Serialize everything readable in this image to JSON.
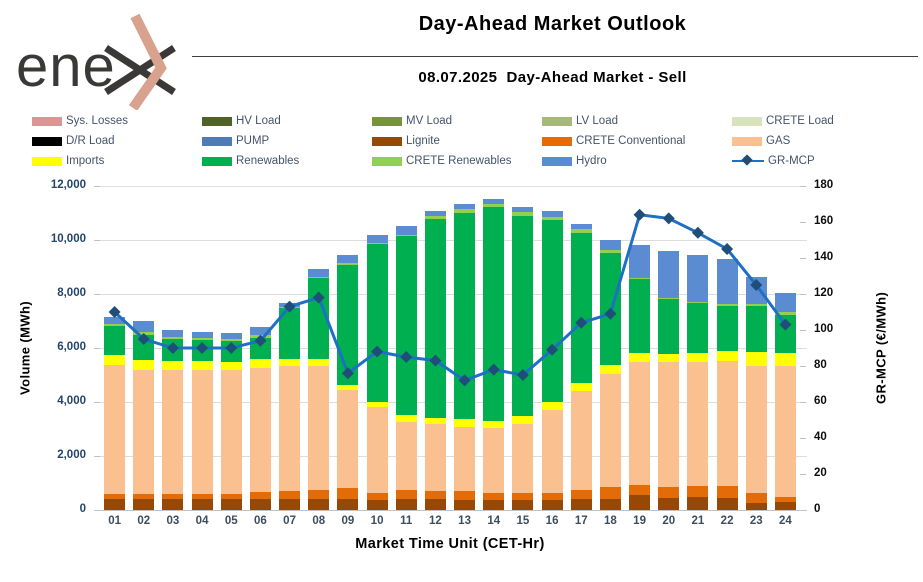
{
  "header": {
    "logo_text": "ene",
    "logo_mark": "x-chevron",
    "logo_colors": {
      "text": "#3B3838",
      "chevron": "#D8A28F"
    },
    "title": "Day-Ahead Market Outlook",
    "subtitle": "08.07.2025  Day-Ahead Market - Sell"
  },
  "legend": {
    "items": [
      {
        "label": "Sys. Losses",
        "color": "#D99694",
        "type": "swatch"
      },
      {
        "label": "HV Load",
        "color": "#4F6228",
        "type": "swatch"
      },
      {
        "label": "MV Load",
        "color": "#77933C",
        "type": "swatch"
      },
      {
        "label": "LV Load",
        "color": "#A6B97C",
        "type": "swatch"
      },
      {
        "label": "CRETE Load",
        "color": "#D6E3BC",
        "type": "swatch"
      },
      {
        "label": "D/R Load",
        "color": "#000000",
        "type": "swatch"
      },
      {
        "label": "PUMP",
        "color": "#4E7AB5",
        "type": "swatch"
      },
      {
        "label": "Lignite",
        "color": "#964806",
        "type": "swatch"
      },
      {
        "label": "CRETE Conventional",
        "color": "#E36C09",
        "type": "swatch"
      },
      {
        "label": "GAS",
        "color": "#FAC090",
        "type": "swatch"
      },
      {
        "label": "Imports",
        "color": "#FFFF00",
        "type": "swatch"
      },
      {
        "label": "Renewables",
        "color": "#00B050",
        "type": "swatch"
      },
      {
        "label": "CRETE Renewables",
        "color": "#92D050",
        "type": "swatch"
      },
      {
        "label": "Hydro",
        "color": "#5B8BD0",
        "type": "swatch"
      },
      {
        "label": "GR-MCP",
        "color": "#1F6FC5",
        "type": "line"
      }
    ]
  },
  "chart_data": {
    "type": "stacked-bar+line",
    "title": "08.07.2025 Day-Ahead Market - Sell",
    "xlabel": "Market Time Unit (CET-Hr)",
    "ylabel_left": "Volume (MWh)",
    "ylabel_right": "GR-MCP (€/MWh)",
    "ylim_left": [
      0,
      12000
    ],
    "ylim_right": [
      0,
      180
    ],
    "left_ticks": [
      "0",
      "2,000",
      "4,000",
      "6,000",
      "8,000",
      "10,000",
      "12,000"
    ],
    "right_ticks": [
      "0",
      "20",
      "40",
      "60",
      "80",
      "100",
      "120",
      "140",
      "160",
      "180"
    ],
    "grid": "horizontal",
    "legend_position": "top",
    "categories": [
      "01",
      "02",
      "03",
      "04",
      "05",
      "06",
      "07",
      "08",
      "09",
      "10",
      "11",
      "12",
      "13",
      "14",
      "15",
      "16",
      "17",
      "18",
      "19",
      "20",
      "21",
      "22",
      "23",
      "24"
    ],
    "series": [
      {
        "name": "Lignite",
        "color": "#964806",
        "values": [
          400,
          400,
          400,
          400,
          400,
          400,
          400,
          400,
          400,
          375,
          400,
          400,
          380,
          380,
          380,
          380,
          400,
          420,
          560,
          460,
          500,
          440,
          250,
          290
        ]
      },
      {
        "name": "CRETE Conventional",
        "color": "#E36C09",
        "values": [
          200,
          200,
          200,
          190,
          200,
          250,
          290,
          350,
          420,
          250,
          350,
          300,
          330,
          260,
          250,
          250,
          350,
          450,
          350,
          380,
          380,
          440,
          380,
          210
        ]
      },
      {
        "name": "GAS",
        "color": "#FAC090",
        "values": [
          4760,
          4600,
          4600,
          4600,
          4570,
          4600,
          4650,
          4580,
          3630,
          3200,
          2510,
          2470,
          2350,
          2400,
          2570,
          3090,
          3670,
          4180,
          4570,
          4650,
          4610,
          4640,
          4700,
          4830
        ]
      },
      {
        "name": "Imports",
        "color": "#FFFF00",
        "values": [
          400,
          350,
          310,
          340,
          330,
          340,
          250,
          250,
          190,
          190,
          250,
          250,
          310,
          270,
          270,
          290,
          270,
          310,
          350,
          300,
          340,
          380,
          530,
          500
        ]
      },
      {
        "name": "Renewables",
        "color": "#00B050",
        "values": [
          1040,
          950,
          820,
          760,
          750,
          800,
          1880,
          3010,
          4450,
          5830,
          6640,
          7350,
          7650,
          7900,
          7430,
          6730,
          5580,
          4160,
          2720,
          2020,
          1830,
          1670,
          1700,
          1380
        ]
      },
      {
        "name": "CRETE Renewables",
        "color": "#92D050",
        "values": [
          80,
          80,
          80,
          80,
          80,
          80,
          50,
          50,
          50,
          50,
          50,
          130,
          130,
          130,
          130,
          130,
          130,
          130,
          60,
          60,
          60,
          60,
          60,
          130
        ]
      },
      {
        "name": "Hydro",
        "color": "#5B8BD0",
        "values": [
          260,
          420,
          270,
          210,
          210,
          320,
          130,
          280,
          300,
          310,
          310,
          160,
          190,
          190,
          190,
          200,
          190,
          340,
          1190,
          1720,
          1730,
          1670,
          1000,
          690
        ]
      }
    ],
    "line_series": {
      "name": "GR-MCP",
      "axis": "right",
      "color": "#1F6FC5",
      "marker": "diamond",
      "marker_color": "#1F4E79",
      "values": [
        110,
        95,
        90,
        90,
        90,
        94,
        113,
        118,
        76,
        88,
        85,
        83,
        72,
        78,
        75,
        89,
        104,
        109,
        164,
        162,
        154,
        145,
        125,
        103
      ]
    }
  }
}
